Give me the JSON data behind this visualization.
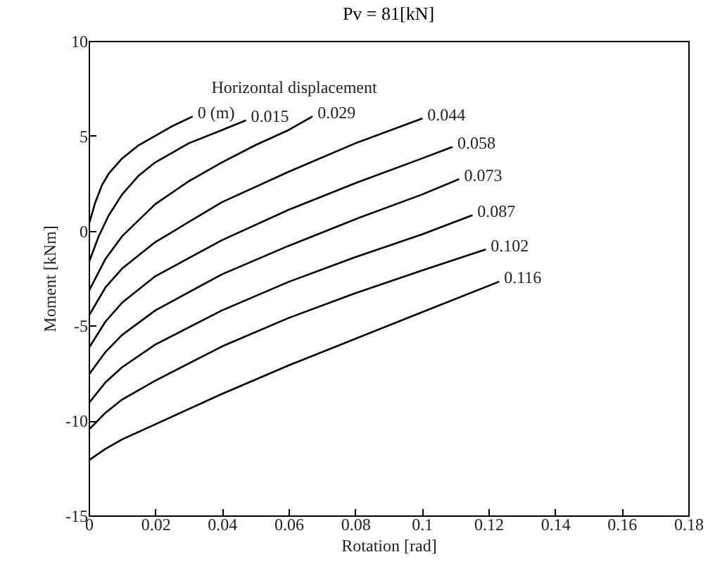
{
  "chart_data": {
    "type": "line",
    "title": "Pv = 81[kN]",
    "xlabel": "Rotation [rad]",
    "ylabel": "Moment [kNm]",
    "legend_title": "Horizontal displacement",
    "legend": false,
    "grid": false,
    "marker": "none",
    "line_style": "solid",
    "xlim": [
      0,
      0.18
    ],
    "xticks": [
      0,
      0.02,
      0.04,
      0.06,
      0.08,
      0.1,
      0.12,
      0.14,
      0.16,
      0.18
    ],
    "ylim": [
      -15,
      10
    ],
    "yticks": [
      -15,
      -10,
      -5,
      0,
      5,
      10
    ],
    "series": [
      {
        "name": "0 (m)",
        "color": "#000000",
        "x": [
          0,
          0.002,
          0.004,
          0.006,
          0.01,
          0.015,
          0.02,
          0.025,
          0.031
        ],
        "values": [
          0.3,
          1.5,
          2.4,
          3.0,
          3.8,
          4.5,
          5.0,
          5.5,
          6.0
        ]
      },
      {
        "name": "0.015",
        "color": "#000000",
        "x": [
          0,
          0.003,
          0.006,
          0.01,
          0.015,
          0.02,
          0.03,
          0.04,
          0.047
        ],
        "values": [
          -1.7,
          -0.3,
          0.8,
          1.9,
          2.9,
          3.6,
          4.6,
          5.3,
          5.8
        ]
      },
      {
        "name": "0.029",
        "color": "#000000",
        "x": [
          0,
          0.005,
          0.01,
          0.02,
          0.03,
          0.04,
          0.05,
          0.06,
          0.067
        ],
        "values": [
          -3.2,
          -1.5,
          -0.3,
          1.4,
          2.6,
          3.6,
          4.5,
          5.3,
          6.0
        ]
      },
      {
        "name": "0.044",
        "color": "#000000",
        "x": [
          0,
          0.005,
          0.01,
          0.02,
          0.04,
          0.06,
          0.08,
          0.1
        ],
        "values": [
          -4.5,
          -3.0,
          -2.0,
          -0.6,
          1.5,
          3.1,
          4.6,
          5.9
        ]
      },
      {
        "name": "0.058",
        "color": "#000000",
        "x": [
          0,
          0.005,
          0.01,
          0.02,
          0.04,
          0.06,
          0.08,
          0.1,
          0.109
        ],
        "values": [
          -6.2,
          -4.8,
          -3.8,
          -2.4,
          -0.5,
          1.1,
          2.5,
          3.8,
          4.4
        ]
      },
      {
        "name": "0.073",
        "color": "#000000",
        "x": [
          0,
          0.005,
          0.01,
          0.02,
          0.04,
          0.06,
          0.08,
          0.1,
          0.111
        ],
        "values": [
          -7.6,
          -6.4,
          -5.5,
          -4.2,
          -2.3,
          -0.8,
          0.6,
          1.9,
          2.7
        ]
      },
      {
        "name": "0.087",
        "color": "#000000",
        "x": [
          0,
          0.005,
          0.01,
          0.02,
          0.04,
          0.06,
          0.08,
          0.1,
          0.115
        ],
        "values": [
          -9.1,
          -8.0,
          -7.2,
          -6.0,
          -4.2,
          -2.7,
          -1.4,
          -0.2,
          0.8
        ]
      },
      {
        "name": "0.102",
        "color": "#000000",
        "x": [
          0,
          0.005,
          0.01,
          0.02,
          0.04,
          0.06,
          0.08,
          0.1,
          0.119
        ],
        "values": [
          -10.5,
          -9.6,
          -8.9,
          -7.9,
          -6.1,
          -4.6,
          -3.3,
          -2.1,
          -1.0
        ]
      },
      {
        "name": "0.116",
        "color": "#000000",
        "x": [
          0,
          0.005,
          0.01,
          0.02,
          0.04,
          0.06,
          0.08,
          0.1,
          0.123
        ],
        "values": [
          -12.1,
          -11.5,
          -11.0,
          -10.2,
          -8.6,
          -7.1,
          -5.7,
          -4.3,
          -2.7
        ]
      }
    ]
  }
}
